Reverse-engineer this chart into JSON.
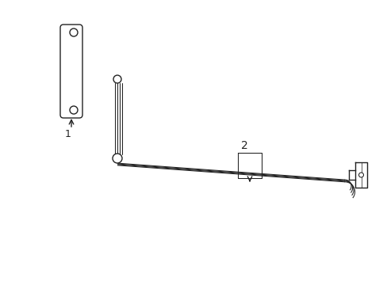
{
  "bg_color": "#ffffff",
  "line_color": "#222222",
  "label1": "1",
  "label2": "2",
  "figsize": [
    4.89,
    3.6
  ],
  "dpi": 100,
  "lw_thin": 0.75,
  "lw_med": 1.0,
  "lw_thick": 1.2
}
